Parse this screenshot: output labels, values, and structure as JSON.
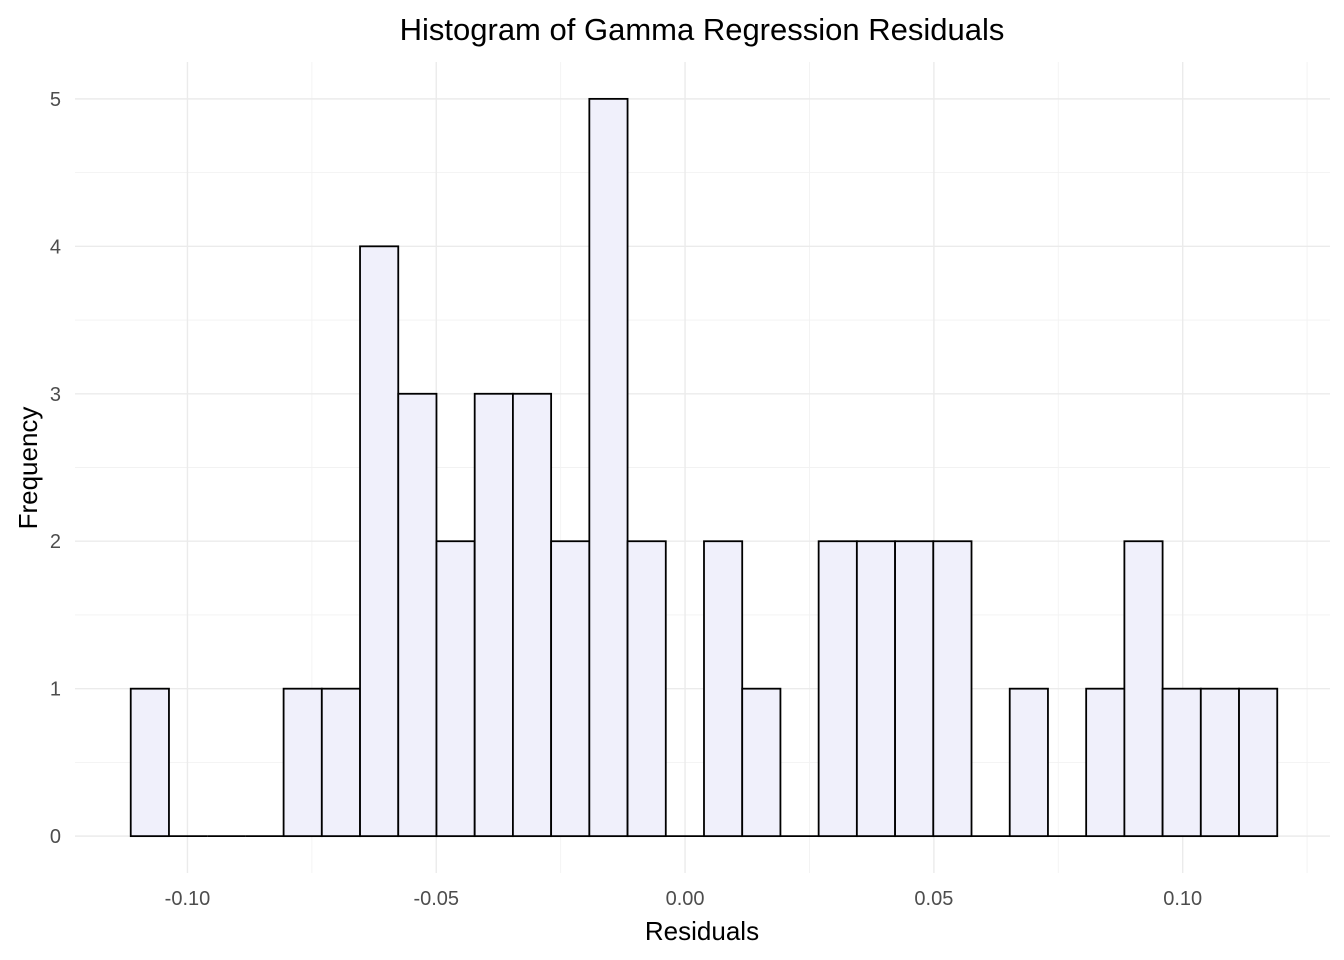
{
  "chart_data": {
    "type": "bar",
    "subtype": "histogram",
    "title": "Histogram of Gamma Regression Residuals",
    "xlabel": "Residuals",
    "ylabel": "Frequency",
    "xlim": [
      -0.1226,
      0.1296
    ],
    "ylim": [
      -0.25,
      5.25
    ],
    "x_ticks": [
      -0.1,
      -0.05,
      0.0,
      0.05,
      0.1
    ],
    "x_tick_labels": [
      "-0.10",
      "-0.05",
      "0.00",
      "0.05",
      "0.10"
    ],
    "y_ticks": [
      0,
      1,
      2,
      3,
      4,
      5
    ],
    "y_tick_labels": [
      "0",
      "1",
      "2",
      "3",
      "4",
      "5"
    ],
    "grid": true,
    "legend": "none",
    "bin_start": -0.1114,
    "bin_width": 0.00768,
    "values": [
      1,
      0,
      0,
      0,
      1,
      1,
      4,
      3,
      2,
      3,
      3,
      2,
      5,
      2,
      0,
      2,
      1,
      0,
      2,
      2,
      2,
      2,
      0,
      1,
      0,
      1,
      2,
      1,
      1,
      1
    ],
    "fill_color": "#f0f0fb",
    "edge_color": "#000000"
  }
}
